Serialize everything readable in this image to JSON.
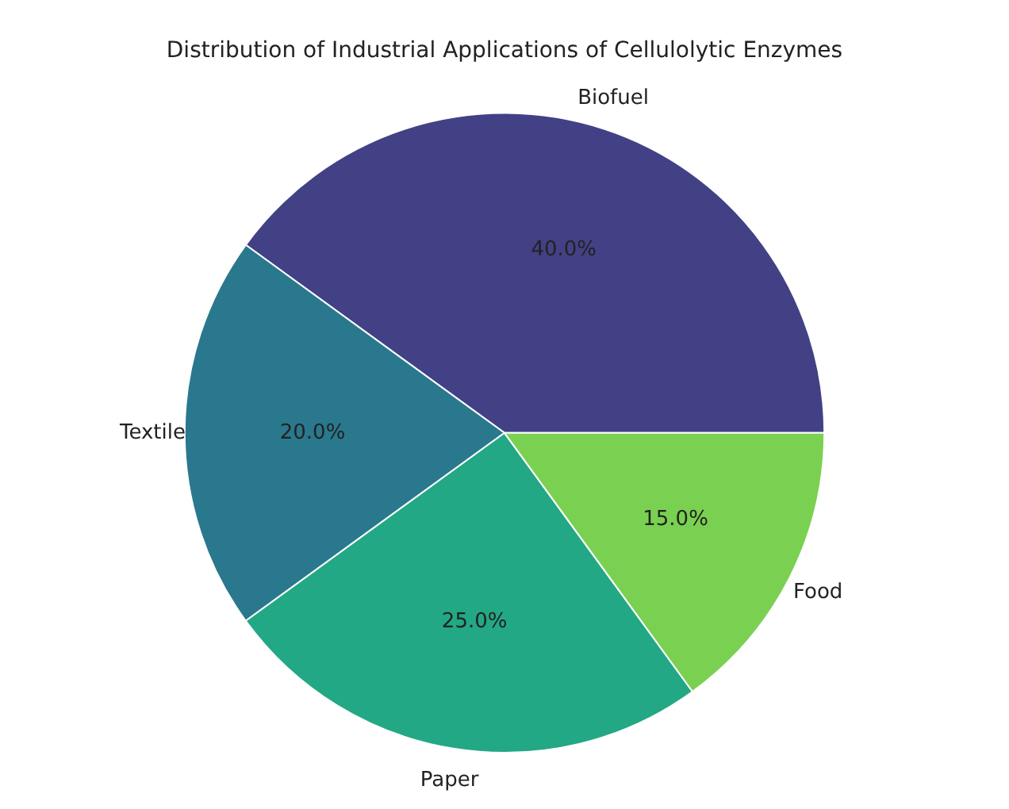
{
  "chart_data": {
    "type": "pie",
    "title": "Distribution of Industrial Applications of Cellulolytic Enzymes",
    "categories": [
      "Biofuel",
      "Textile",
      "Paper",
      "Food"
    ],
    "values": [
      40,
      20,
      25,
      15
    ],
    "colors": [
      "#424186",
      "#2a788e",
      "#22a884",
      "#7ad151"
    ],
    "value_labels": [
      "40.0%",
      "20.0%",
      "25.0%",
      "15.0%"
    ],
    "legend": false
  }
}
